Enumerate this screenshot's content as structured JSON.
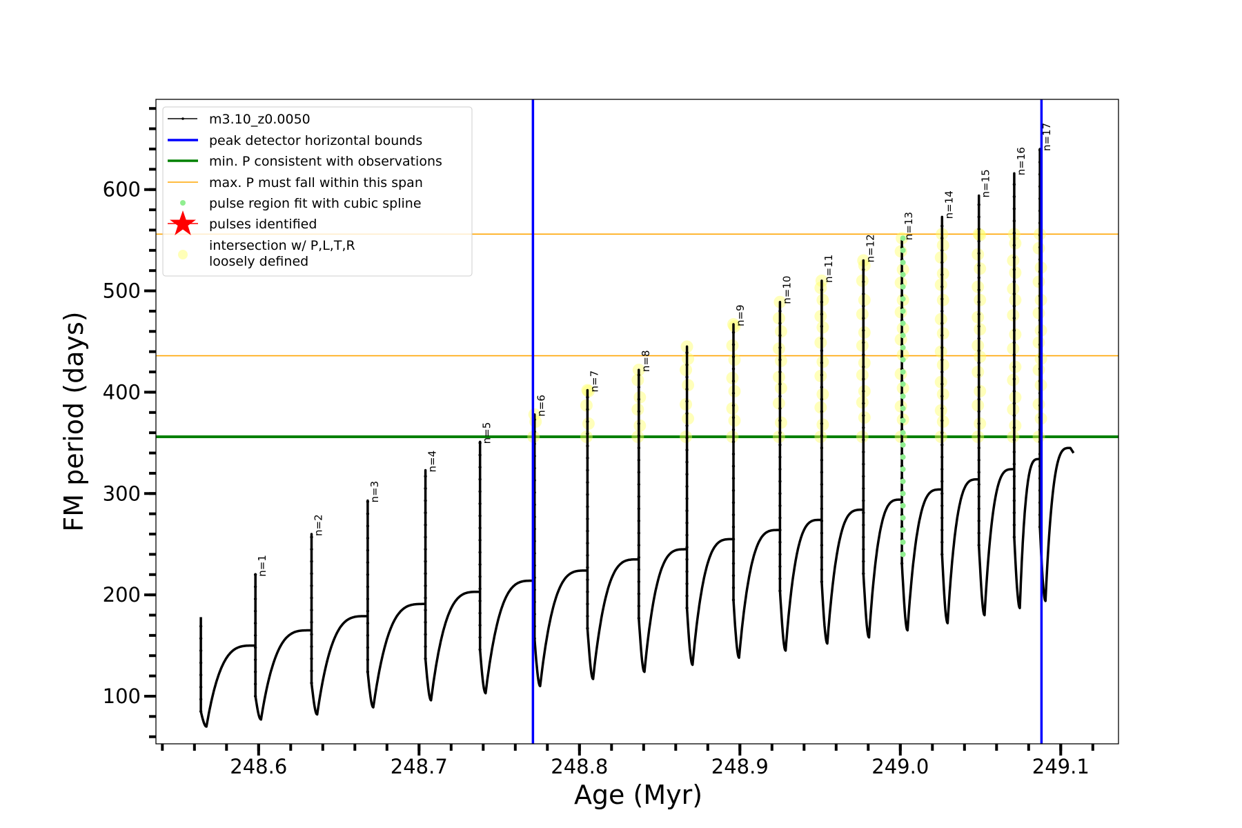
{
  "chart_data": {
    "type": "line",
    "title": "",
    "xlabel": "Age (Myr)",
    "ylabel": "FM period (days)",
    "xlim": [
      248.536,
      249.136
    ],
    "ylim": [
      53,
      689
    ],
    "grid": false,
    "legend_placement": "top-left",
    "xticks": {
      "major": [
        248.6,
        248.7,
        248.8,
        248.9,
        249.0,
        249.1
      ],
      "labels": [
        "248.6",
        "248.7",
        "248.8",
        "248.9",
        "249.0",
        "249.1"
      ],
      "minor_step": 0.02
    },
    "yticks": {
      "major": [
        100,
        200,
        300,
        400,
        500,
        600
      ],
      "labels": [
        "100",
        "200",
        "300",
        "400",
        "500",
        "600"
      ],
      "minor_step": 20
    },
    "series": {
      "name": "m3.10_z0.0050",
      "color": "#000000",
      "start": {
        "age": 248.564,
        "value": 178,
        "spike_bottom": 85,
        "trough": 70
      },
      "pulses": [
        {
          "label": "n=1",
          "age": 248.598,
          "plateau_before": 150,
          "peak": 220,
          "spike_bottom": 100,
          "trough": 77
        },
        {
          "label": "n=2",
          "age": 248.633,
          "plateau_before": 165,
          "peak": 260,
          "spike_bottom": 113,
          "trough": 82
        },
        {
          "label": "n=3",
          "age": 248.668,
          "plateau_before": 179,
          "peak": 293,
          "spike_bottom": 124,
          "trough": 89
        },
        {
          "label": "n=4",
          "age": 248.704,
          "plateau_before": 191,
          "peak": 323,
          "spike_bottom": 137,
          "trough": 96
        },
        {
          "label": "n=5",
          "age": 248.738,
          "plateau_before": 203,
          "peak": 351,
          "spike_bottom": 146,
          "trough": 103
        },
        {
          "label": "n=6",
          "age": 248.772,
          "plateau_before": 214,
          "peak": 378,
          "spike_bottom": 157,
          "trough": 110
        },
        {
          "label": "n=7",
          "age": 248.805,
          "plateau_before": 224,
          "peak": 402,
          "spike_bottom": 167,
          "trough": 117
        },
        {
          "label": "n=8",
          "age": 248.837,
          "plateau_before": 235,
          "peak": 422,
          "spike_bottom": 177,
          "trough": 124
        },
        {
          "label": "",
          "age": 248.867,
          "plateau_before": 245,
          "peak": 445,
          "spike_bottom": 187,
          "trough": 131
        },
        {
          "label": "n=9",
          "age": 248.896,
          "plateau_before": 255,
          "peak": 467,
          "spike_bottom": 195,
          "trough": 138
        },
        {
          "label": "n=10",
          "age": 248.925,
          "plateau_before": 264,
          "peak": 489,
          "spike_bottom": 204,
          "trough": 145
        },
        {
          "label": "n=11",
          "age": 248.951,
          "plateau_before": 274,
          "peak": 510,
          "spike_bottom": 213,
          "trough": 152
        },
        {
          "label": "n=12",
          "age": 248.977,
          "plateau_before": 284,
          "peak": 530,
          "spike_bottom": 221,
          "trough": 158
        },
        {
          "label": "n=13",
          "age": 249.001,
          "plateau_before": 294,
          "peak": 552,
          "spike_bottom": 231,
          "trough": 165
        },
        {
          "label": "n=14",
          "age": 249.026,
          "plateau_before": 304,
          "peak": 573,
          "spike_bottom": 240,
          "trough": 172
        },
        {
          "label": "n=15",
          "age": 249.049,
          "plateau_before": 314,
          "peak": 594,
          "spike_bottom": 249,
          "trough": 180
        },
        {
          "label": "n=16",
          "age": 249.071,
          "plateau_before": 324,
          "peak": 616,
          "spike_bottom": 257,
          "trough": 187
        },
        {
          "label": "n=17",
          "age": 249.087,
          "plateau_before": 334,
          "peak": 640,
          "spike_bottom": 267,
          "trough": 194
        }
      ],
      "end": {
        "age": 249.108,
        "max": 345,
        "value": 340
      }
    },
    "vlines": {
      "label": "peak detector horizontal bounds",
      "color": "#0000ff",
      "x": [
        248.771,
        249.088
      ]
    },
    "hline_min": {
      "label": "min. P consistent with observations",
      "color": "#008000",
      "y": 356
    },
    "hlines_max": {
      "label": "max. P must fall within this span",
      "color": "#ffa500",
      "y": [
        436,
        556
      ]
    },
    "spline_fit": {
      "label": "pulse region fit with cubic spline",
      "color": "#90ee90",
      "pulse": "n=13",
      "range": [
        240,
        552
      ]
    },
    "pulses_identified": {
      "label": "pulses identified",
      "color": "#ff0000"
    },
    "loosely_defined": {
      "label": "intersection w/ P,L,T,R\nloosely defined",
      "label_lines": [
        "intersection w/ P,L,T,R",
        "loosely defined"
      ],
      "color": "#ffff66",
      "range": [
        356,
        556
      ]
    }
  }
}
